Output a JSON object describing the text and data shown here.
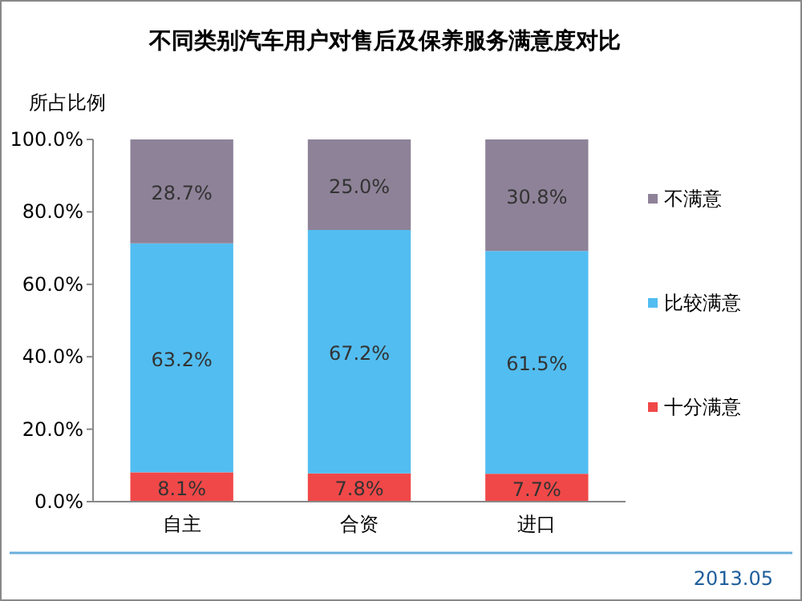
{
  "chart_data": {
    "type": "bar",
    "stacked": true,
    "title": "不同类别汽车用户对售后及保养服务满意度对比",
    "ylabel": "所占比例",
    "categories": [
      "自主",
      "合资",
      "进口"
    ],
    "series": [
      {
        "name": "十分满意",
        "color": "#f04848",
        "values": [
          8.1,
          7.8,
          7.7
        ],
        "value_labels": [
          "8.1%",
          "7.8%",
          "7.7%"
        ]
      },
      {
        "name": "比较满意",
        "color": "#52bdf0",
        "values": [
          63.2,
          67.2,
          61.5
        ],
        "value_labels": [
          "63.2%",
          "67.2%",
          "61.5%"
        ]
      },
      {
        "name": "不满意",
        "color": "#8e8298",
        "values": [
          28.7,
          25.0,
          30.8
        ],
        "value_labels": [
          "28.7%",
          "25.0%",
          "30.8%"
        ]
      }
    ],
    "ylim": [
      0,
      100
    ],
    "yticks": [
      {
        "value": 0,
        "label": "0.0%"
      },
      {
        "value": 20,
        "label": "20.0%"
      },
      {
        "value": 40,
        "label": "40.0%"
      },
      {
        "value": 60,
        "label": "60.0%"
      },
      {
        "value": 80,
        "label": "80.0%"
      },
      {
        "value": 100,
        "label": "100.0%"
      }
    ],
    "grid": false,
    "legend": "right",
    "annotations": [
      "2013.05"
    ]
  }
}
